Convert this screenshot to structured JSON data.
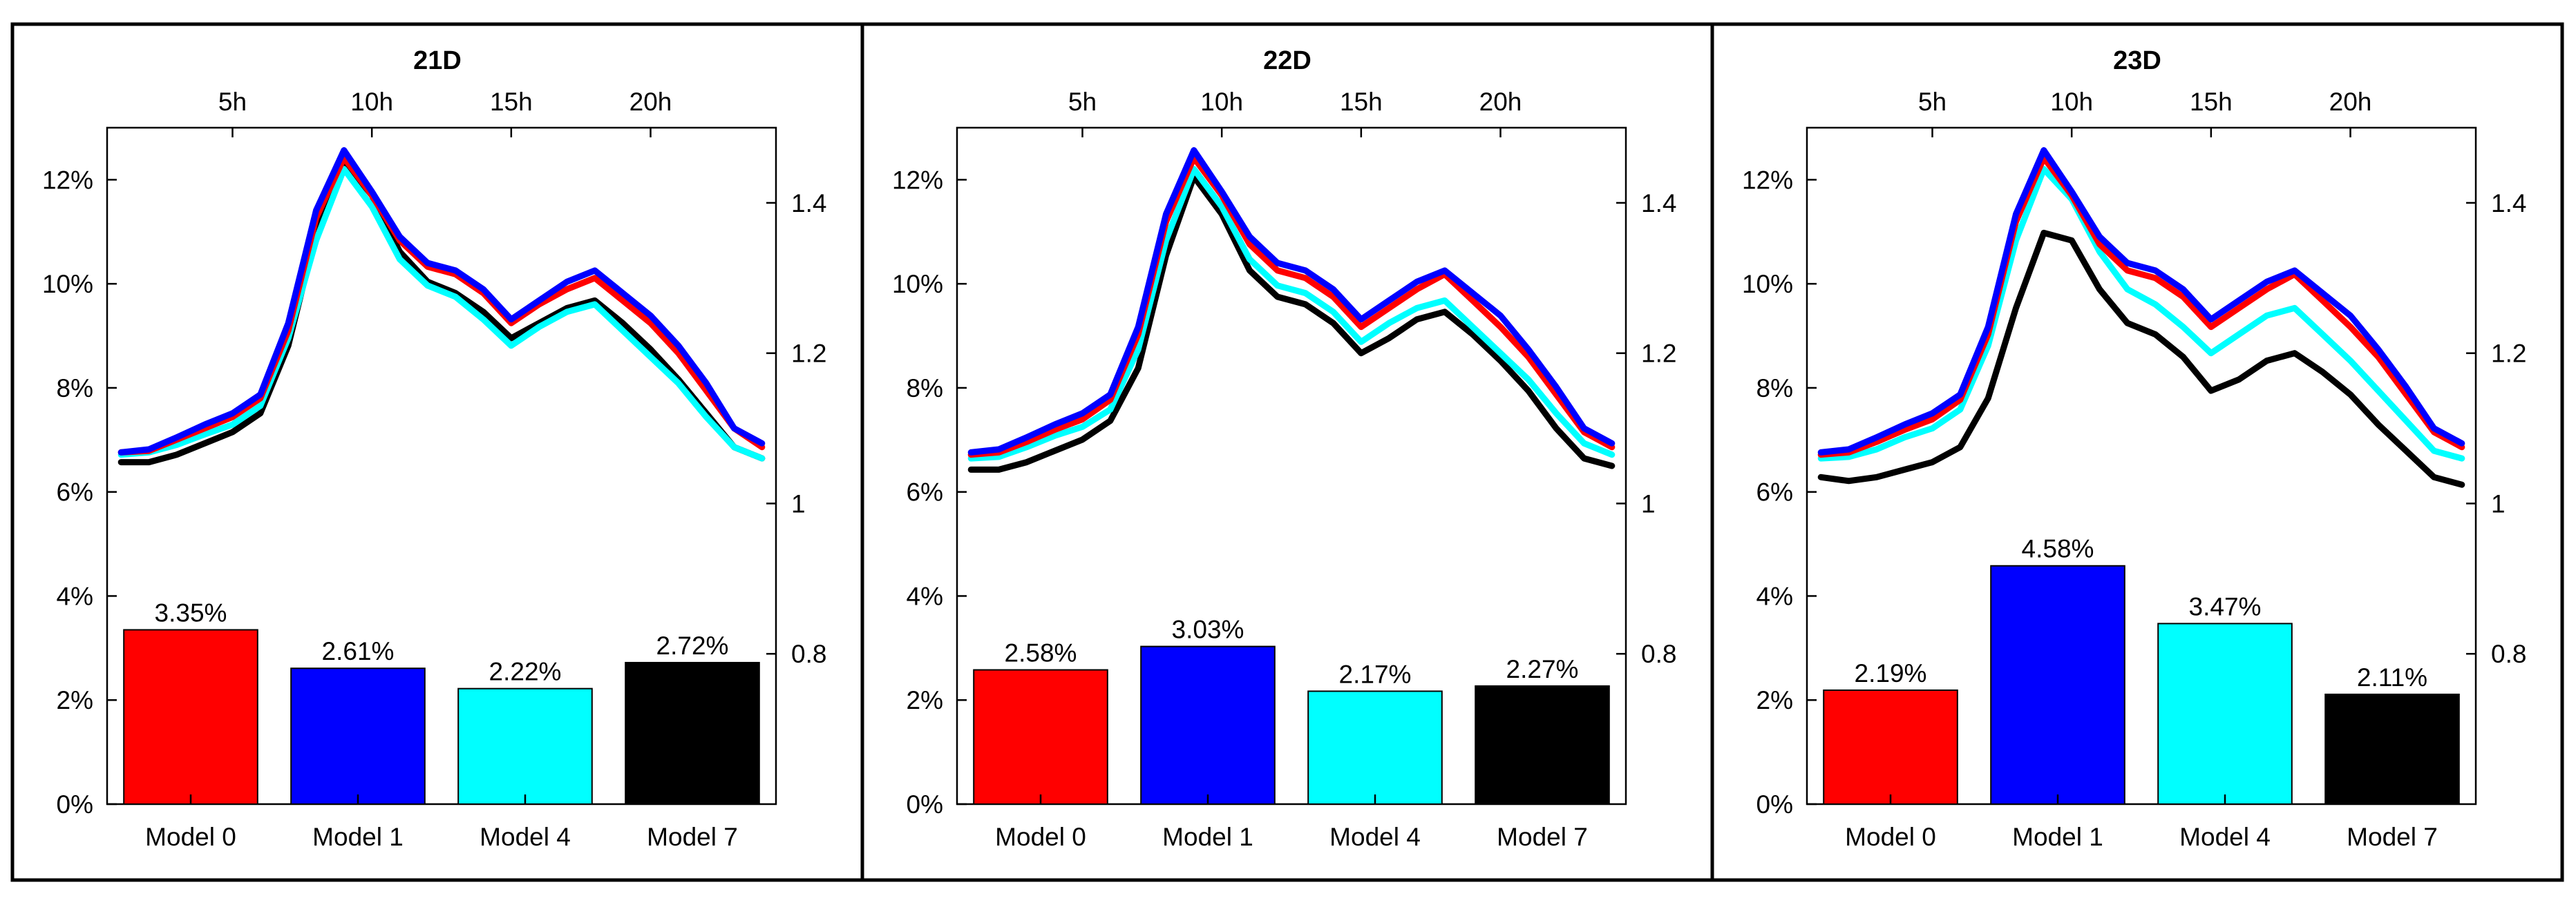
{
  "figure": {
    "colors": {
      "Model 0": "#ff0000",
      "Model 1": "#0000ff",
      "Model 4": "#00ffff",
      "Model 7": "#000000"
    }
  },
  "chart_data": [
    {
      "type": "bar",
      "title": "21D",
      "categories": [
        "Model 0",
        "Model 1",
        "Model 4",
        "Model 7"
      ],
      "values": [
        3.35,
        2.61,
        2.22,
        2.72
      ],
      "bar_labels": [
        "3.35%",
        "2.61%",
        "2.22%",
        "2.72%"
      ],
      "ylim": [
        0,
        13
      ],
      "yticks": [
        0,
        2,
        4,
        6,
        8,
        10,
        12
      ],
      "ytick_labels": [
        "0%",
        "2%",
        "4%",
        "6%",
        "8%",
        "10%",
        "12%"
      ],
      "overlay": {
        "type": "line",
        "x": [
          1,
          2,
          3,
          4,
          5,
          6,
          7,
          8,
          9,
          10,
          11,
          12,
          13,
          14,
          15,
          16,
          17,
          18,
          19,
          20,
          21,
          22,
          23,
          24
        ],
        "xlim": [
          0.5,
          24.5
        ],
        "xticks": [
          5,
          10,
          15,
          20
        ],
        "xtick_labels": [
          "5h",
          "10h",
          "15h",
          "20h"
        ],
        "ylim": [
          0.6,
          1.5
        ],
        "yticks": [
          0.8,
          1.0,
          1.2,
          1.4
        ],
        "ytick_labels": [
          "0.8",
          "1",
          "1.2",
          "1.4"
        ],
        "series": [
          {
            "name": "Model 7",
            "values": [
              1.055,
              1.055,
              1.065,
              1.08,
              1.095,
              1.12,
              1.21,
              1.36,
              1.455,
              1.41,
              1.335,
              1.295,
              1.28,
              1.255,
              1.22,
              1.24,
              1.26,
              1.27,
              1.24,
              1.205,
              1.165,
              1.12,
              1.075,
              1.06
            ]
          },
          {
            "name": "Model 4",
            "values": [
              1.065,
              1.068,
              1.078,
              1.092,
              1.105,
              1.13,
              1.22,
              1.35,
              1.445,
              1.395,
              1.325,
              1.29,
              1.275,
              1.245,
              1.21,
              1.235,
              1.255,
              1.265,
              1.23,
              1.195,
              1.16,
              1.115,
              1.075,
              1.06
            ]
          },
          {
            "name": "Model 0",
            "values": [
              1.068,
              1.07,
              1.085,
              1.1,
              1.115,
              1.14,
              1.23,
              1.38,
              1.46,
              1.41,
              1.35,
              1.315,
              1.305,
              1.28,
              1.24,
              1.265,
              1.285,
              1.3,
              1.27,
              1.24,
              1.2,
              1.15,
              1.1,
              1.075
            ]
          },
          {
            "name": "Model 1",
            "values": [
              1.068,
              1.072,
              1.088,
              1.105,
              1.12,
              1.145,
              1.24,
              1.39,
              1.47,
              1.415,
              1.355,
              1.32,
              1.31,
              1.285,
              1.245,
              1.27,
              1.295,
              1.31,
              1.28,
              1.25,
              1.21,
              1.16,
              1.1,
              1.08
            ]
          }
        ]
      }
    },
    {
      "type": "bar",
      "title": "22D",
      "categories": [
        "Model 0",
        "Model 1",
        "Model 4",
        "Model 7"
      ],
      "values": [
        2.58,
        3.03,
        2.17,
        2.27
      ],
      "bar_labels": [
        "2.58%",
        "3.03%",
        "2.17%",
        "2.27%"
      ],
      "ylim": [
        0,
        13
      ],
      "yticks": [
        0,
        2,
        4,
        6,
        8,
        10,
        12
      ],
      "ytick_labels": [
        "0%",
        "2%",
        "4%",
        "6%",
        "8%",
        "10%",
        "12%"
      ],
      "overlay": {
        "type": "line",
        "x": [
          1,
          2,
          3,
          4,
          5,
          6,
          7,
          8,
          9,
          10,
          11,
          12,
          13,
          14,
          15,
          16,
          17,
          18,
          19,
          20,
          21,
          22,
          23,
          24
        ],
        "xlim": [
          0.5,
          24.5
        ],
        "xticks": [
          5,
          10,
          15,
          20
        ],
        "xtick_labels": [
          "5h",
          "10h",
          "15h",
          "20h"
        ],
        "ylim": [
          0.6,
          1.5
        ],
        "yticks": [
          0.8,
          1.0,
          1.2,
          1.4
        ],
        "ytick_labels": [
          "0.8",
          "1",
          "1.2",
          "1.4"
        ],
        "series": [
          {
            "name": "Model 7",
            "values": [
              1.045,
              1.045,
              1.055,
              1.07,
              1.085,
              1.11,
              1.18,
              1.33,
              1.435,
              1.385,
              1.31,
              1.275,
              1.265,
              1.24,
              1.2,
              1.22,
              1.245,
              1.255,
              1.225,
              1.19,
              1.15,
              1.1,
              1.06,
              1.05
            ]
          },
          {
            "name": "Model 4",
            "values": [
              1.06,
              1.062,
              1.075,
              1.09,
              1.102,
              1.125,
              1.205,
              1.35,
              1.445,
              1.395,
              1.325,
              1.29,
              1.28,
              1.255,
              1.215,
              1.24,
              1.26,
              1.27,
              1.235,
              1.2,
              1.165,
              1.12,
              1.08,
              1.065
            ]
          },
          {
            "name": "Model 0",
            "values": [
              1.065,
              1.068,
              1.082,
              1.098,
              1.112,
              1.138,
              1.225,
              1.375,
              1.46,
              1.41,
              1.345,
              1.31,
              1.3,
              1.275,
              1.235,
              1.26,
              1.285,
              1.305,
              1.27,
              1.235,
              1.195,
              1.145,
              1.095,
              1.075
            ]
          },
          {
            "name": "Model 1",
            "values": [
              1.068,
              1.072,
              1.088,
              1.105,
              1.12,
              1.145,
              1.235,
              1.385,
              1.47,
              1.415,
              1.355,
              1.32,
              1.31,
              1.285,
              1.245,
              1.27,
              1.295,
              1.31,
              1.28,
              1.25,
              1.205,
              1.155,
              1.1,
              1.08
            ]
          }
        ]
      }
    },
    {
      "type": "bar",
      "title": "23D",
      "categories": [
        "Model 0",
        "Model 1",
        "Model 4",
        "Model 7"
      ],
      "values": [
        2.19,
        4.58,
        3.47,
        2.11
      ],
      "bar_labels": [
        "2.19%",
        "4.58%",
        "3.47%",
        "2.11%"
      ],
      "ylim": [
        0,
        13
      ],
      "yticks": [
        0,
        2,
        4,
        6,
        8,
        10,
        12
      ],
      "ytick_labels": [
        "0%",
        "2%",
        "4%",
        "6%",
        "8%",
        "10%",
        "12%"
      ],
      "overlay": {
        "type": "line",
        "x": [
          1,
          2,
          3,
          4,
          5,
          6,
          7,
          8,
          9,
          10,
          11,
          12,
          13,
          14,
          15,
          16,
          17,
          18,
          19,
          20,
          21,
          22,
          23,
          24
        ],
        "xlim": [
          0.5,
          24.5
        ],
        "xticks": [
          5,
          10,
          15,
          20
        ],
        "xtick_labels": [
          "5h",
          "10h",
          "15h",
          "20h"
        ],
        "ylim": [
          0.6,
          1.5
        ],
        "yticks": [
          0.8,
          1.0,
          1.2,
          1.4
        ],
        "ytick_labels": [
          "0.8",
          "1",
          "1.2",
          "1.4"
        ],
        "series": [
          {
            "name": "Model 7",
            "values": [
              1.035,
              1.03,
              1.035,
              1.045,
              1.055,
              1.075,
              1.14,
              1.26,
              1.36,
              1.35,
              1.285,
              1.24,
              1.225,
              1.195,
              1.15,
              1.165,
              1.19,
              1.2,
              1.175,
              1.145,
              1.105,
              1.07,
              1.035,
              1.025
            ]
          },
          {
            "name": "Model 4",
            "values": [
              1.06,
              1.062,
              1.072,
              1.088,
              1.1,
              1.125,
              1.21,
              1.35,
              1.445,
              1.405,
              1.335,
              1.285,
              1.265,
              1.235,
              1.2,
              1.225,
              1.25,
              1.26,
              1.225,
              1.19,
              1.15,
              1.11,
              1.07,
              1.06
            ]
          },
          {
            "name": "Model 0",
            "values": [
              1.065,
              1.068,
              1.082,
              1.098,
              1.112,
              1.138,
              1.225,
              1.375,
              1.46,
              1.41,
              1.345,
              1.31,
              1.3,
              1.275,
              1.235,
              1.26,
              1.285,
              1.305,
              1.27,
              1.235,
              1.195,
              1.145,
              1.095,
              1.075
            ]
          },
          {
            "name": "Model 1",
            "values": [
              1.068,
              1.072,
              1.088,
              1.105,
              1.12,
              1.145,
              1.235,
              1.385,
              1.47,
              1.415,
              1.355,
              1.32,
              1.31,
              1.285,
              1.245,
              1.27,
              1.295,
              1.31,
              1.28,
              1.25,
              1.205,
              1.155,
              1.1,
              1.08
            ]
          }
        ]
      }
    }
  ]
}
